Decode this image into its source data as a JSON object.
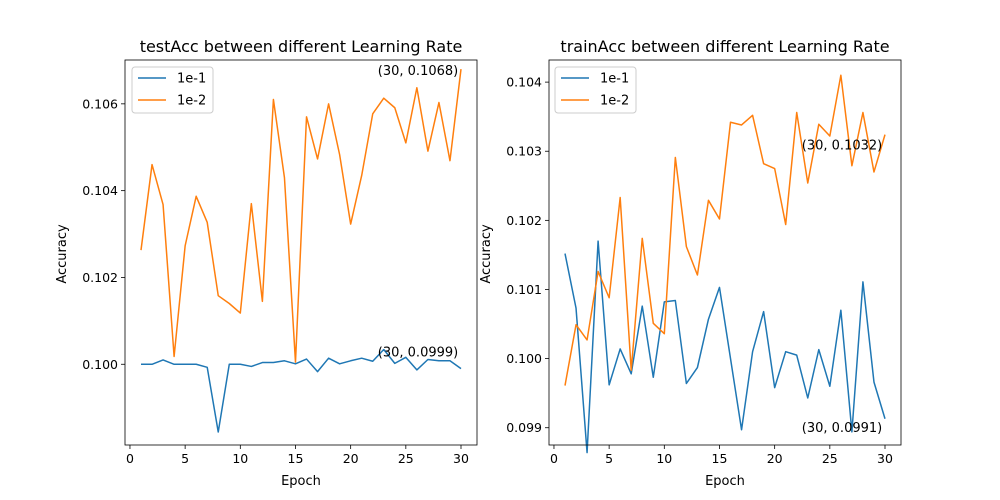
{
  "colors": {
    "series_1": "#1f77b4",
    "series_2": "#ff7f0e"
  },
  "chart_data": [
    {
      "type": "line",
      "title": "testAcc between different Learning Rate",
      "xlabel": "Epoch",
      "ylabel": "Accuracy",
      "xlim": [
        -0.45,
        31.45
      ],
      "ylim": [
        0.09814,
        0.10701
      ],
      "xticks": [
        0,
        5,
        10,
        15,
        20,
        25,
        30
      ],
      "yticks": [
        0.1,
        0.102,
        0.104,
        0.106
      ],
      "ytick_labels": [
        "0.100",
        "0.102",
        "0.104",
        "0.106"
      ],
      "legend": "top-left",
      "grid": false,
      "x": [
        1,
        2,
        3,
        4,
        5,
        6,
        7,
        8,
        9,
        10,
        11,
        12,
        13,
        14,
        15,
        16,
        17,
        18,
        19,
        20,
        21,
        22,
        23,
        24,
        25,
        26,
        27,
        28,
        29,
        30
      ],
      "series": [
        {
          "name": "1e-1",
          "color": "#1f77b4",
          "values": [
            0.1,
            0.1,
            0.1001,
            0.1,
            0.1,
            0.1,
            0.09993,
            0.09844,
            0.1,
            0.1,
            0.09995,
            0.10004,
            0.10004,
            0.10008,
            0.10001,
            0.10012,
            0.09983,
            0.10014,
            0.10001,
            0.10008,
            0.10014,
            0.10007,
            0.10034,
            0.10002,
            0.10016,
            0.09987,
            0.10011,
            0.10008,
            0.10008,
            0.0999
          ]
        },
        {
          "name": "1e-2",
          "color": "#ff7f0e",
          "values": [
            0.10263,
            0.1046,
            0.10368,
            0.10018,
            0.10273,
            0.10387,
            0.10327,
            0.10158,
            0.1014,
            0.10118,
            0.1037,
            0.10145,
            0.1061,
            0.1043,
            0.10005,
            0.1057,
            0.10473,
            0.106,
            0.10483,
            0.10323,
            0.10435,
            0.10577,
            0.10613,
            0.10591,
            0.1051,
            0.10637,
            0.10491,
            0.10603,
            0.10469,
            0.1068
          ]
        }
      ],
      "annotations": [
        {
          "text": "(30, 0.1068)",
          "x": 30,
          "y": 0.1068,
          "series": 1
        },
        {
          "text": "(30, 0.0999)",
          "x": 30,
          "y": 0.0999,
          "series": 0
        }
      ]
    },
    {
      "type": "line",
      "title": "trainAcc between different Learning Rate",
      "xlabel": "Epoch",
      "ylabel": "Accuracy",
      "xlim": [
        -0.45,
        31.45
      ],
      "ylim": [
        0.09875,
        0.10432
      ],
      "xticks": [
        0,
        5,
        10,
        15,
        20,
        25,
        30
      ],
      "yticks": [
        0.099,
        0.1,
        0.101,
        0.102,
        0.103,
        0.104
      ],
      "ytick_labels": [
        "0.099",
        "0.100",
        "0.101",
        "0.102",
        "0.103",
        "0.104"
      ],
      "legend": "top-left",
      "grid": false,
      "x": [
        1,
        2,
        3,
        4,
        5,
        6,
        7,
        8,
        9,
        10,
        11,
        12,
        13,
        14,
        15,
        16,
        17,
        18,
        19,
        20,
        21,
        22,
        23,
        24,
        25,
        26,
        27,
        28,
        29,
        30
      ],
      "series": [
        {
          "name": "1e-1",
          "color": "#1f77b4",
          "values": [
            0.10152,
            0.10073,
            0.09864,
            0.1017,
            0.09962,
            0.10014,
            0.09978,
            0.10076,
            0.09973,
            0.10082,
            0.10084,
            0.09964,
            0.09987,
            0.10057,
            0.10103,
            0.1,
            0.09897,
            0.1001,
            0.10068,
            0.09958,
            0.1001,
            0.10005,
            0.09943,
            0.10013,
            0.0996,
            0.1007,
            0.09894,
            0.10111,
            0.09966,
            0.09913
          ]
        },
        {
          "name": "1e-2",
          "color": "#ff7f0e",
          "values": [
            0.09961,
            0.10049,
            0.10027,
            0.10126,
            0.10088,
            0.10233,
            0.09983,
            0.10174,
            0.10051,
            0.10036,
            0.10291,
            0.10162,
            0.10121,
            0.10229,
            0.10202,
            0.10342,
            0.10338,
            0.10352,
            0.10282,
            0.10275,
            0.10194,
            0.10356,
            0.10254,
            0.10339,
            0.10322,
            0.1041,
            0.10279,
            0.10356,
            0.1027,
            0.10324
          ]
        }
      ],
      "annotations": [
        {
          "text": "(30, 0.1032)",
          "x": 30,
          "y": 0.1032,
          "series": 1
        },
        {
          "text": "(30, 0.0991)",
          "x": 30,
          "y": 0.0991,
          "series": 0
        }
      ]
    }
  ]
}
